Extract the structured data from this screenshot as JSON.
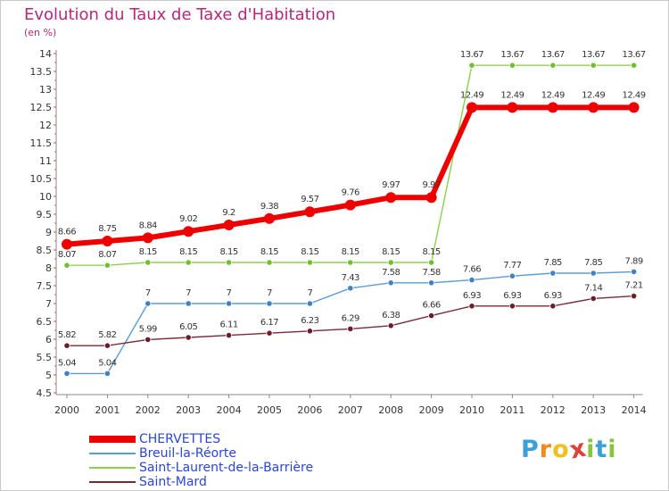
{
  "title": "Evolution du Taux de Taxe d'Habitation",
  "subtitle": "(en %)",
  "brand": {
    "name": "Proxiti",
    "letters": [
      {
        "ch": "P",
        "color": "#3aa0d8"
      },
      {
        "ch": "r",
        "color": "#f28a1a"
      },
      {
        "ch": "o",
        "color": "#f0c020"
      },
      {
        "ch": "x",
        "color": "#e0403a"
      },
      {
        "ch": "i",
        "color": "#8ac43f"
      },
      {
        "ch": "t",
        "color": "#3aa0d8"
      },
      {
        "ch": "i",
        "color": "#8ac43f"
      }
    ]
  },
  "chart_data": {
    "type": "line",
    "title": "Evolution du Taux de Taxe d'Habitation",
    "ylabel": "(en %)",
    "xlabel": "",
    "ylim": [
      4.5,
      14
    ],
    "y_ticks": [
      "4.5",
      "5",
      "5.5",
      "6",
      "6.5",
      "7",
      "7.5",
      "8",
      "8.5",
      "9",
      "9.5",
      "10",
      "10.5",
      "11",
      "11.5",
      "12",
      "12.5",
      "13",
      "13.5",
      "14"
    ],
    "grid": false,
    "legend_position": "bottom-left",
    "categories": [
      "2000",
      "2001",
      "2002",
      "2003",
      "2004",
      "2005",
      "2006",
      "2007",
      "2008",
      "2009",
      "2010",
      "2011",
      "2012",
      "2013",
      "2014"
    ],
    "series": [
      {
        "name": "CHERVETTES",
        "color": "#ee0000",
        "marker": "#ee0000",
        "values": [
          8.66,
          8.75,
          8.84,
          9.02,
          9.2,
          9.38,
          9.57,
          9.76,
          9.97,
          9.97,
          12.49,
          12.49,
          12.49,
          12.49,
          12.49
        ],
        "labels": [
          "8.66",
          "8.75",
          "8.84",
          "9.02",
          "9.2",
          "9.38",
          "9.57",
          "9.76",
          "9.97",
          "9.97",
          "12.49",
          "12.49",
          "12.49",
          "12.49",
          "12.49"
        ]
      },
      {
        "name": "Breuil-la-Réorte",
        "color": "#5b9bd5",
        "marker": "#3e82c4",
        "values": [
          5.04,
          5.04,
          7,
          7,
          7,
          7,
          7,
          7.43,
          7.58,
          7.58,
          7.66,
          7.77,
          7.85,
          7.85,
          7.89
        ],
        "labels": [
          "5.04",
          "5.04",
          "7",
          "7",
          "7",
          "7",
          "7",
          "7.43",
          "7.58",
          "7.58",
          "7.66",
          "7.77",
          "7.85",
          "7.85",
          "7.89"
        ]
      },
      {
        "name": "Saint-Laurent-de-la-Barrière",
        "color": "#8ed04e",
        "marker": "#6fbf2f",
        "values": [
          8.07,
          8.07,
          8.15,
          8.15,
          8.15,
          8.15,
          8.15,
          8.15,
          8.15,
          8.15,
          13.67,
          13.67,
          13.67,
          13.67,
          13.67
        ],
        "labels": [
          "8.07",
          "8.07",
          "8.15",
          "8.15",
          "8.15",
          "8.15",
          "8.15",
          "8.15",
          "8.15",
          "8.15",
          "13.67",
          "13.67",
          "13.67",
          "13.67",
          "13.67"
        ]
      },
      {
        "name": "Saint-Mard",
        "color": "#7a2a35",
        "marker": "#6a1e29",
        "values": [
          5.82,
          5.82,
          5.99,
          6.05,
          6.11,
          6.17,
          6.23,
          6.29,
          6.38,
          6.66,
          6.93,
          6.93,
          6.93,
          7.14,
          7.21
        ],
        "labels": [
          "5.82",
          "5.82",
          "5.99",
          "6.05",
          "6.11",
          "6.17",
          "6.23",
          "6.29",
          "6.38",
          "6.66",
          "6.93",
          "6.93",
          "6.93",
          "7.14",
          "7.21"
        ]
      }
    ]
  }
}
